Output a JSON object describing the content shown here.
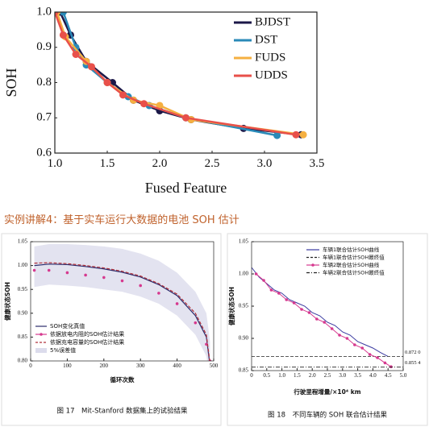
{
  "heading": "实例讲解4：基于实车运行大数据的电池 SOH 估计",
  "chart_data": [
    {
      "type": "line",
      "xlabel": "Fused Feature",
      "ylabel": "SOH",
      "xlim": [
        1.0,
        3.5
      ],
      "ylim": [
        0.6,
        1.0
      ],
      "xticks": [
        {
          "value": 1,
          "label": "1.0"
        },
        1.5,
        {
          "value": 2,
          "label": "2.0"
        },
        2.5,
        {
          "value": 3,
          "label": "3.0"
        },
        3.5
      ],
      "yticks": [
        0.6,
        0.7,
        0.8,
        0.9,
        {
          "value": 1,
          "label": "1.0"
        }
      ],
      "legend": "upper right",
      "series": [
        {
          "name": "BJDST",
          "color": "#1c1848",
          "style": "line-markers",
          "x": [
            1.05,
            1.15,
            1.3,
            1.55,
            1.75,
            2.0,
            2.3,
            2.8,
            3.35
          ],
          "values": [
            1.0,
            0.935,
            0.86,
            0.8,
            0.75,
            0.72,
            0.695,
            0.67,
            0.652
          ]
        },
        {
          "name": "DST",
          "color": "#2a8ab8",
          "style": "line-markers",
          "x": [
            1.08,
            1.2,
            1.3,
            1.5,
            1.7,
            1.9,
            2.25,
            3.12
          ],
          "values": [
            1.0,
            0.9,
            0.85,
            0.8,
            0.76,
            0.735,
            0.7,
            0.65
          ]
        },
        {
          "name": "FUDS",
          "color": "#f5b041",
          "style": "line-markers",
          "x": [
            1.02,
            1.1,
            1.3,
            1.5,
            1.75,
            2.0,
            2.3,
            3.37
          ],
          "values": [
            1.0,
            0.93,
            0.86,
            0.8,
            0.75,
            0.735,
            0.695,
            0.652
          ]
        },
        {
          "name": "UDDS",
          "color": "#e8504a",
          "style": "line-markers",
          "x": [
            1.0,
            1.08,
            1.2,
            1.35,
            1.5,
            1.65,
            1.85,
            2.25,
            3.3
          ],
          "values": [
            1.0,
            0.935,
            0.88,
            0.845,
            0.8,
            0.765,
            0.74,
            0.7,
            0.652
          ]
        }
      ]
    },
    {
      "type": "line",
      "xlabel": "循环次数",
      "ylabel": "健康状态SOH",
      "caption": "图 17　Mit-Stanford 数据集上的试验结果",
      "xlim": [
        0,
        500
      ],
      "ylim": [
        0.8,
        1.05
      ],
      "xticks": [
        0,
        100,
        200,
        300,
        400,
        500
      ],
      "yticks": [
        {
          "value": 0.8,
          "label": "0.80"
        },
        {
          "value": 0.85,
          "label": "0.85"
        },
        {
          "value": 0.9,
          "label": "0.90"
        },
        {
          "value": 0.95,
          "label": "0.95"
        },
        {
          "value": 1,
          "label": "1.00"
        },
        {
          "value": 1.05,
          "label": "1.05"
        }
      ],
      "legend": "lower left",
      "series": [
        {
          "name": "SOH变化真值",
          "color": "#2c2c6c",
          "style": "line",
          "x": [
            10,
            50,
            100,
            150,
            200,
            250,
            300,
            350,
            400,
            450,
            480,
            490
          ],
          "values": [
            1.0,
            1.003,
            1.002,
            0.998,
            0.993,
            0.986,
            0.976,
            0.96,
            0.937,
            0.895,
            0.85,
            0.79
          ]
        },
        {
          "name": "依据放电内阻的SOH估计结果",
          "color": "#d6398f",
          "style": "markers",
          "x": [
            10,
            50,
            100,
            150,
            200,
            250,
            300,
            350,
            400,
            450,
            480,
            490
          ],
          "values": [
            0.99,
            0.99,
            0.985,
            0.98,
            0.975,
            0.968,
            0.958,
            0.942,
            0.92,
            0.88,
            0.835,
            0.8
          ]
        },
        {
          "name": "依据充电容量的SOH估计结果",
          "color": "#b0303a",
          "style": "dashed",
          "x": [
            10,
            50,
            100,
            150,
            200,
            250,
            300,
            350,
            400,
            450,
            480,
            490
          ],
          "values": [
            1.005,
            1.006,
            1.004,
            1.0,
            0.995,
            0.988,
            0.978,
            0.962,
            0.94,
            0.9,
            0.855,
            0.795
          ]
        },
        {
          "name": "5%误差值",
          "color": "#dcdcec",
          "style": "band",
          "x": [
            10,
            50,
            100,
            150,
            200,
            250,
            300,
            350,
            400,
            450,
            480,
            490
          ],
          "upper": [
            1.04,
            1.045,
            1.045,
            1.043,
            1.04,
            1.035,
            1.025,
            1.01,
            0.985,
            0.945,
            0.9,
            0.84
          ],
          "lower": [
            0.955,
            0.96,
            0.958,
            0.955,
            0.95,
            0.945,
            0.935,
            0.92,
            0.895,
            0.855,
            0.81,
            0.76
          ]
        }
      ]
    },
    {
      "type": "line",
      "xlabel": "行驶里程增量/×10⁴ km",
      "ylabel": "健康状态SOH",
      "caption": "图 18　不同车辆的 SOH 联合估计结果",
      "xlim": [
        0,
        5
      ],
      "ylim": [
        0.85,
        1.05
      ],
      "xticks": [
        0,
        0.5,
        {
          "value": 1,
          "label": "1.0"
        },
        1.5,
        {
          "value": 2,
          "label": "2.0"
        },
        2.5,
        {
          "value": 3,
          "label": "3.0"
        },
        3.5,
        {
          "value": 4,
          "label": "4.0"
        },
        4.5,
        {
          "value": 5,
          "label": "5.0"
        }
      ],
      "yticks": [
        0.85,
        {
          "value": 0.9,
          "label": "0.90"
        },
        0.95,
        {
          "value": 1,
          "label": "1.00"
        },
        1.05
      ],
      "legend": "upper right",
      "series": [
        {
          "name": "车辆1联合估计SOH曲线",
          "color": "#3a3aa0",
          "style": "line",
          "x": [
            0,
            0.25,
            0.5,
            0.75,
            1,
            1.25,
            1.5,
            1.75,
            2,
            2.25,
            2.5,
            2.75,
            3,
            3.25,
            3.5,
            3.75,
            4,
            4.25,
            4.5
          ],
          "values": [
            1.01,
            0.995,
            0.985,
            0.975,
            0.97,
            0.96,
            0.955,
            0.95,
            0.94,
            0.935,
            0.925,
            0.92,
            0.91,
            0.905,
            0.895,
            0.89,
            0.885,
            0.878,
            0.872
          ]
        },
        {
          "name": "车辆1联合估计SOH最终值",
          "color": "#222222",
          "style": "hline",
          "values": [
            0.872
          ],
          "value_labels": [
            "0.872 0"
          ]
        },
        {
          "name": "车辆2联合估计SOH曲线",
          "color": "#d6398f",
          "style": "line-markers",
          "x": [
            0.15,
            0.4,
            0.65,
            0.9,
            1.15,
            1.4,
            1.65,
            1.9,
            2.15,
            2.4,
            2.65,
            2.9,
            3.15,
            3.4,
            3.65,
            3.9,
            4.15,
            4.4,
            4.6
          ],
          "values": [
            1.0,
            0.99,
            0.975,
            0.97,
            0.96,
            0.955,
            0.945,
            0.94,
            0.93,
            0.925,
            0.915,
            0.905,
            0.9,
            0.89,
            0.885,
            0.875,
            0.87,
            0.862,
            0.856
          ]
        },
        {
          "name": "车辆2联合估计SOH最终值",
          "color": "#222222",
          "style": "hline-dashdot",
          "values": [
            0.8554
          ],
          "value_labels": [
            "0.855 4"
          ]
        }
      ]
    }
  ]
}
